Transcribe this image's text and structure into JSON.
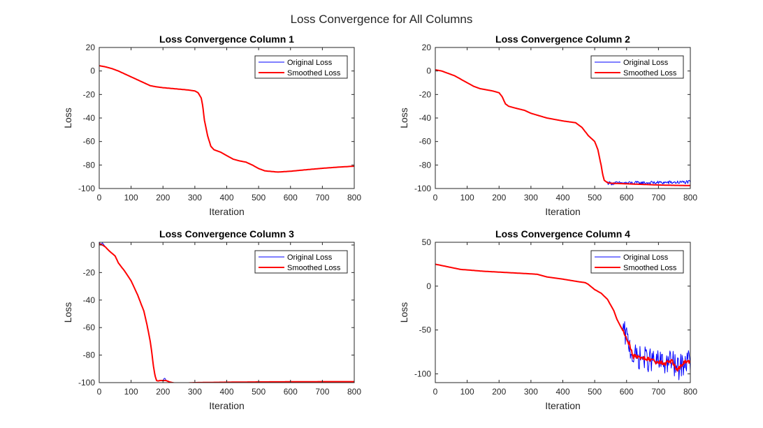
{
  "figure_title": "Loss Convergence for All Columns",
  "colors": {
    "original": "#0000ff",
    "smoothed": "#ff0000",
    "axis": "#262626"
  },
  "chart_data": [
    {
      "type": "line",
      "title": "Loss Convergence Column 1",
      "xlabel": "Iteration",
      "ylabel": "Loss",
      "xlim": [
        0,
        800
      ],
      "ylim": [
        -100,
        20
      ],
      "xticks": [
        0,
        100,
        200,
        300,
        400,
        500,
        600,
        700,
        800
      ],
      "yticks": [
        -100,
        -80,
        -60,
        -40,
        -20,
        0,
        20
      ],
      "legend": "top-right",
      "series": [
        {
          "name": "Original Loss",
          "color": "#0000ff",
          "noise": 0,
          "noise_from": 800,
          "x": [
            0,
            20,
            40,
            60,
            80,
            100,
            120,
            140,
            160,
            180,
            200,
            220,
            240,
            260,
            280,
            300,
            310,
            320,
            325,
            330,
            340,
            350,
            360,
            380,
            400,
            420,
            440,
            460,
            480,
            500,
            520,
            540,
            560,
            600,
            650,
            700,
            750,
            800
          ],
          "y": [
            4.5,
            3.5,
            2,
            0,
            -2.5,
            -5,
            -7.5,
            -10,
            -12.5,
            -13.5,
            -14.2,
            -14.7,
            -15.2,
            -15.7,
            -16.2,
            -17,
            -18.5,
            -23,
            -30,
            -42,
            -55,
            -64,
            -67,
            -69,
            -72,
            -75,
            -76.5,
            -77.5,
            -80,
            -83,
            -85,
            -85.5,
            -86,
            -85.3,
            -84,
            -82.8,
            -81.8,
            -81
          ]
        },
        {
          "name": "Smoothed Loss",
          "color": "#ff0000",
          "noise": 0,
          "noise_from": 800,
          "x": [
            0,
            20,
            40,
            60,
            80,
            100,
            120,
            140,
            160,
            180,
            200,
            220,
            240,
            260,
            280,
            300,
            310,
            320,
            325,
            330,
            340,
            350,
            360,
            380,
            400,
            420,
            440,
            460,
            480,
            500,
            520,
            540,
            560,
            600,
            650,
            700,
            750,
            800
          ],
          "y": [
            4.5,
            3.5,
            2,
            0,
            -2.5,
            -5,
            -7.5,
            -10,
            -12.5,
            -13.5,
            -14.2,
            -14.7,
            -15.2,
            -15.7,
            -16.2,
            -17,
            -18.5,
            -23,
            -30,
            -42,
            -55,
            -64,
            -67,
            -69,
            -72,
            -75,
            -76.5,
            -77.5,
            -80,
            -83,
            -85,
            -85.5,
            -86,
            -85.3,
            -84,
            -82.8,
            -81.8,
            -81
          ]
        }
      ]
    },
    {
      "type": "line",
      "title": "Loss Convergence Column 2",
      "xlabel": "Iteration",
      "ylabel": "Loss",
      "xlim": [
        0,
        800
      ],
      "ylim": [
        -100,
        20
      ],
      "xticks": [
        0,
        100,
        200,
        300,
        400,
        500,
        600,
        700,
        800
      ],
      "yticks": [
        -100,
        -80,
        -60,
        -40,
        -20,
        0,
        20
      ],
      "legend": "top-right",
      "series": [
        {
          "name": "Original Loss",
          "color": "#0000ff",
          "noise": 1.5,
          "noise_from": 540,
          "x": [
            0,
            20,
            40,
            60,
            80,
            100,
            120,
            140,
            160,
            180,
            200,
            210,
            220,
            230,
            250,
            280,
            300,
            350,
            400,
            440,
            460,
            480,
            500,
            510,
            520,
            525,
            530,
            540,
            550,
            600,
            650,
            700,
            750,
            800
          ],
          "y": [
            1,
            0,
            -2,
            -4,
            -7,
            -10,
            -13,
            -15,
            -16,
            -17,
            -18.5,
            -22,
            -28,
            -30,
            -31.5,
            -33.5,
            -36,
            -40,
            -42.5,
            -44,
            -48,
            -55,
            -60,
            -67,
            -80,
            -88,
            -93,
            -95,
            -95.5,
            -95.3,
            -95.2,
            -95,
            -94.8,
            -94.5
          ]
        },
        {
          "name": "Smoothed Loss",
          "color": "#ff0000",
          "noise": 0,
          "noise_from": 800,
          "x": [
            0,
            20,
            40,
            60,
            80,
            100,
            120,
            140,
            160,
            180,
            200,
            210,
            220,
            230,
            250,
            280,
            300,
            350,
            400,
            440,
            460,
            480,
            500,
            510,
            520,
            525,
            530,
            540,
            550,
            600,
            650,
            700,
            750,
            800
          ],
          "y": [
            1,
            0,
            -2,
            -4,
            -7,
            -10,
            -13,
            -15,
            -16,
            -17,
            -18.5,
            -22,
            -28,
            -30,
            -31.5,
            -33.5,
            -36,
            -40,
            -42.5,
            -44,
            -48,
            -55,
            -60,
            -67,
            -80,
            -88,
            -93,
            -95,
            -95.5,
            -96,
            -96.5,
            -97,
            -97.3,
            -97.5
          ]
        }
      ]
    },
    {
      "type": "line",
      "title": "Loss Convergence Column 3",
      "xlabel": "Iteration",
      "ylabel": "Loss",
      "xlim": [
        0,
        800
      ],
      "ylim": [
        -100,
        2
      ],
      "xticks": [
        0,
        100,
        200,
        300,
        400,
        500,
        600,
        700,
        800
      ],
      "yticks": [
        -100,
        -80,
        -60,
        -40,
        -20,
        0
      ],
      "legend": "top-right",
      "series": [
        {
          "name": "Original Loss",
          "color": "#0000ff",
          "noise": 0,
          "noise_from": 800,
          "x": [
            0,
            5,
            10,
            20,
            30,
            40,
            50,
            60,
            80,
            100,
            120,
            140,
            150,
            160,
            165,
            170,
            175,
            180,
            185,
            190,
            200,
            205,
            210,
            220,
            240,
            260,
            300,
            400,
            500,
            600,
            700,
            800
          ],
          "y": [
            2,
            0.5,
            1.5,
            -1.5,
            -4,
            -6,
            -8,
            -13,
            -19,
            -26,
            -36,
            -48,
            -58,
            -70,
            -78,
            -88,
            -95,
            -98.5,
            -98.8,
            -98.5,
            -98.5,
            -96.5,
            -98.5,
            -99.5,
            -100.5,
            -100.5,
            -100,
            -99.7,
            -99.5,
            -99.4,
            -99.3,
            -99.3
          ]
        },
        {
          "name": "Smoothed Loss",
          "color": "#ff0000",
          "noise": 0,
          "noise_from": 800,
          "x": [
            0,
            10,
            20,
            30,
            40,
            50,
            60,
            80,
            100,
            120,
            140,
            150,
            160,
            165,
            170,
            175,
            180,
            185,
            190,
            200,
            210,
            220,
            240,
            260,
            300,
            400,
            500,
            600,
            700,
            800
          ],
          "y": [
            1,
            0,
            -1.5,
            -4,
            -6,
            -8,
            -13,
            -19,
            -26,
            -36,
            -48,
            -58,
            -70,
            -78,
            -88,
            -95,
            -98.5,
            -98.8,
            -98.5,
            -98.5,
            -98.5,
            -99.5,
            -100.5,
            -100.5,
            -100,
            -99.7,
            -99.5,
            -99.4,
            -99.3,
            -99.3
          ]
        }
      ]
    },
    {
      "type": "line",
      "title": "Loss Convergence Column 4",
      "xlabel": "Iteration",
      "ylabel": "Loss",
      "xlim": [
        0,
        800
      ],
      "ylim": [
        -110,
        50
      ],
      "xticks": [
        0,
        100,
        200,
        300,
        400,
        500,
        600,
        700,
        800
      ],
      "yticks": [
        -100,
        -50,
        0,
        50
      ],
      "legend": "top-right",
      "series": [
        {
          "name": "Original Loss",
          "color": "#0000ff",
          "noise": 14,
          "noise_from": 590,
          "x": [
            0,
            20,
            40,
            60,
            80,
            100,
            150,
            200,
            250,
            300,
            320,
            330,
            350,
            400,
            450,
            470,
            480,
            500,
            520,
            540,
            560,
            570,
            580,
            590,
            600,
            610,
            620,
            650,
            700,
            720,
            740,
            760,
            780,
            800
          ],
          "y": [
            25,
            23.5,
            22,
            20.5,
            19,
            18.5,
            17,
            16,
            15,
            14,
            13.5,
            12.5,
            10.5,
            8,
            5,
            4,
            2,
            -4,
            -8,
            -15,
            -28,
            -38,
            -45,
            -52,
            -58,
            -68,
            -80,
            -82,
            -87,
            -88,
            -85,
            -95,
            -87,
            -85
          ]
        },
        {
          "name": "Smoothed Loss",
          "color": "#ff0000",
          "noise": 2.5,
          "noise_from": 590,
          "x": [
            0,
            20,
            40,
            60,
            80,
            100,
            150,
            200,
            250,
            300,
            320,
            330,
            350,
            400,
            450,
            470,
            480,
            500,
            520,
            540,
            560,
            570,
            580,
            590,
            600,
            610,
            620,
            650,
            700,
            720,
            740,
            760,
            780,
            800
          ],
          "y": [
            25,
            23.5,
            22,
            20.5,
            19,
            18.5,
            17,
            16,
            15,
            14,
            13.5,
            12.5,
            10.5,
            8,
            5,
            4,
            2,
            -4,
            -8,
            -15,
            -28,
            -38,
            -45,
            -52,
            -58,
            -68,
            -80,
            -82,
            -87,
            -88,
            -85,
            -95,
            -87,
            -85
          ]
        }
      ]
    }
  ]
}
